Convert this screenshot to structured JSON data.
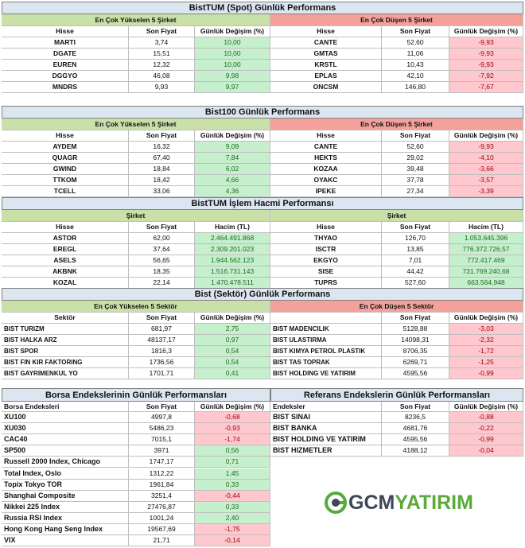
{
  "sections": [
    {
      "title": "BistTUM (Spot) Günlük Performans",
      "left": {
        "subtitle": "En Çok Yükselen 5 Şirket",
        "subtitle_color": "#c9e0a8",
        "headers": [
          "Hisse",
          "Son Fiyat",
          "Günlük Değişim (%)"
        ],
        "rows": [
          [
            "MARTI",
            "3,74",
            "10,00"
          ],
          [
            "DGATE",
            "15,51",
            "10,00"
          ],
          [
            "EUREN",
            "12,32",
            "10,00"
          ],
          [
            "DGGYO",
            "46,08",
            "9,98"
          ],
          [
            "MNDRS",
            "9,93",
            "9,97"
          ]
        ]
      },
      "right": {
        "subtitle": "En Çok Düşen 5 Şirket",
        "subtitle_color": "#f4a19b",
        "headers": [
          "Hisse",
          "Son Fiyat",
          "Günlük Değişim (%)"
        ],
        "rows": [
          [
            "CANTE",
            "52,60",
            "-9,93"
          ],
          [
            "GMTAS",
            "11,06",
            "-9,93"
          ],
          [
            "KRSTL",
            "10,43",
            "-9,93"
          ],
          [
            "EPLAS",
            "42,10",
            "-7,92"
          ],
          [
            "ONCSM",
            "146,80",
            "-7,67"
          ]
        ]
      }
    },
    {
      "title": "Bist100 Günlük Performans",
      "left": {
        "subtitle": "En Çok Yükselen 5 Şirket",
        "subtitle_color": "#c9e0a8",
        "headers": [
          "Hisse",
          "Son Fiyat",
          "Günlük Değişim (%)"
        ],
        "rows": [
          [
            "AYDEM",
            "16,32",
            "9,09"
          ],
          [
            "QUAGR",
            "67,40",
            "7,84"
          ],
          [
            "GWIND",
            "18,84",
            "6,02"
          ],
          [
            "TTKOM",
            "18,42",
            "4,66"
          ],
          [
            "TCELL",
            "33,06",
            "4,36"
          ]
        ]
      },
      "right": {
        "subtitle": "En Çok Düşen 5 Şirket",
        "subtitle_color": "#f4a19b",
        "headers": [
          "Hisse",
          "Son Fiyat",
          "Günlük Değişim (%)"
        ],
        "rows": [
          [
            "CANTE",
            "52,60",
            "-9,93"
          ],
          [
            "HEKTS",
            "29,02",
            "-4,10"
          ],
          [
            "KOZAA",
            "39,48",
            "-3,66"
          ],
          [
            "OYAKC",
            "37,78",
            "-3,57"
          ],
          [
            "IPEKE",
            "27,34",
            "-3,39"
          ]
        ]
      }
    },
    {
      "title": "BistTUM İşlem Hacmi Performansı",
      "left": {
        "subtitle": "Şirket",
        "subtitle_color": "#c9e0a8",
        "headers": [
          "Hisse",
          "Son Fiyat",
          "Hacim (TL)"
        ],
        "rows": [
          [
            "ASTOR",
            "62,00",
            "2.464.491.868"
          ],
          [
            "EREGL",
            "37,64",
            "2.309.201.023"
          ],
          [
            "ASELS",
            "56,65",
            "1.944.562.123"
          ],
          [
            "AKBNK",
            "18,35",
            "1.516.731.143"
          ],
          [
            "KOZAL",
            "22,14",
            "1.470.478.511"
          ]
        ]
      },
      "right": {
        "subtitle": "Şirket",
        "subtitle_color": "#c9e0a8",
        "headers": [
          "Hisse",
          "Son Fiyat",
          "Hacim (TL)"
        ],
        "rows": [
          [
            "THYAO",
            "126,70",
            "1.053.645.396"
          ],
          [
            "ISCTR",
            "13,85",
            "776.372.726,57"
          ],
          [
            "EKGYO",
            "7,01",
            "772.417.469"
          ],
          [
            "SISE",
            "44,42",
            "731.769.240,68"
          ],
          [
            "TUPRS",
            "527,60",
            "663.564.948"
          ]
        ]
      }
    },
    {
      "title": "Bist (Sektör) Günlük Performans",
      "left": {
        "subtitle": "En Çok Yükselen 5 Sektör",
        "subtitle_color": "#c9e0a8",
        "headers": [
          "Sektör",
          "Son Fiyat",
          "Günlük Değişim (%)"
        ],
        "rows": [
          [
            "BIST TURIZM",
            "681,97",
            "2,75"
          ],
          [
            "BIST HALKA ARZ",
            "48137,17",
            "0,97"
          ],
          [
            "BIST SPOR",
            "1816,3",
            "0,54"
          ],
          [
            "BIST FIN KIR FAKTORING",
            "1736,56",
            "0,54"
          ],
          [
            "BIST GAYRIMENKUL YO",
            "1701,71",
            "0,41"
          ]
        ]
      },
      "right": {
        "subtitle": "En Çok Düşen 5 Sektör",
        "subtitle_color": "#f4a19b",
        "headers": [
          null,
          "Son Fiyat",
          "Günlük Değişim (%)"
        ],
        "rows": [
          [
            "BIST MADENCILIK",
            "5128,88",
            "-3,03"
          ],
          [
            "BIST ULASTIRMA",
            "14098,31",
            "-2,32"
          ],
          [
            "BIST KIMYA PETROL PLASTIK",
            "8706,35",
            "-1,72"
          ],
          [
            "BIST TAS TOPRAK",
            "6269,71",
            "-1,25"
          ],
          [
            "BIST HOLDING VE YATIRIM",
            "4595,56",
            "-0,99"
          ]
        ]
      }
    },
    {
      "left": {
        "title": "Borsa Endekslerinin Günlük Performansları",
        "headers": [
          "Borsa Endeksleri",
          "Son Fiyat",
          "Günlük Değişim (%)"
        ],
        "rows": [
          [
            "XU100",
            "4997,8",
            "-0,68"
          ],
          [
            "XU030",
            "5486,23",
            "-0,93"
          ],
          [
            "CAC40",
            "7015,1",
            "-1,74"
          ],
          [
            "SP500",
            "3971",
            "0,56"
          ],
          [
            "Russell 2000 Index, Chicago",
            "1747,17",
            "0,71"
          ],
          [
            "Total Index, Oslo",
            "1312,22",
            "1,45"
          ],
          [
            "Topix Tokyo TOR",
            "1961,84",
            "0,33"
          ],
          [
            "Shanghai Composite",
            "3251,4",
            "-0,44"
          ],
          [
            "Nikkei 225 Index",
            "27476,87",
            "0,33"
          ],
          [
            "Russia RSI Index",
            "1001,24",
            "2,40"
          ],
          [
            "Hong Kong Hang Seng Index",
            "19567,69",
            "-1,75"
          ],
          [
            "VIX",
            "21,71",
            "-0,14"
          ]
        ]
      },
      "right": {
        "title": "Referans Endekslerin  Günlük Performansları",
        "headers": [
          "Endeksler",
          "Son Fiyat",
          "Günlük Değişim (%)"
        ],
        "rows": [
          [
            "BIST SINAI",
            "8236,5",
            "-0,88"
          ],
          [
            "BIST BANKA",
            "4681,76",
            "-0,22"
          ],
          [
            "BIST HOLDING VE YATIRIM",
            "4595,56",
            "-0,99"
          ],
          [
            "BIST HIZMETLER",
            "4188,12",
            "-0,04"
          ]
        ]
      }
    }
  ],
  "logo": {
    "parts": [
      "GCM",
      "YATIRIM"
    ]
  }
}
